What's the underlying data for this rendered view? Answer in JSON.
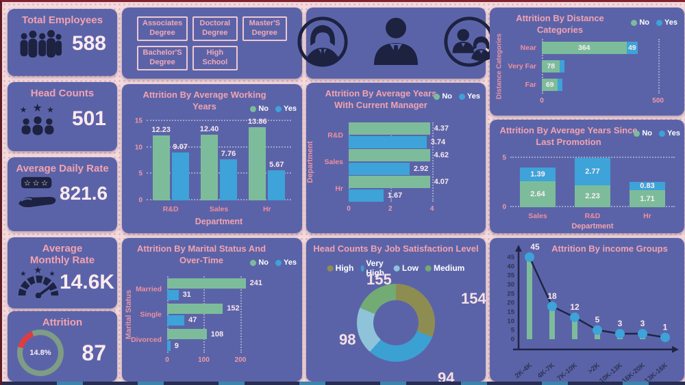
{
  "colors": {
    "background": "#f4d9dd",
    "card": "#5b63a8",
    "title_pink": "#f2a3b0",
    "value_light": "#fdeaee",
    "axis_salmon": "#ef9ba7",
    "no_green": "#7cbc9b",
    "yes_blue": "#3da3d8",
    "icon_dark": "#1c2240",
    "line_dark": "#1e2546",
    "gauge_red": "#e03c40",
    "gauge_ring": "#7f9c85",
    "donut_high": "#8e8d51",
    "donut_very_high": "#3ba0d2",
    "donut_low": "#8ec3da",
    "donut_medium": "#72ab74"
  },
  "legend": {
    "no": "No",
    "yes": "Yes"
  },
  "kpis": [
    {
      "title": "Total Employees",
      "value": "588"
    },
    {
      "title": "Head Counts",
      "value": "501"
    },
    {
      "title": "Average Daily Rate",
      "value": "821.6"
    },
    {
      "title": "Average Monthly Rate",
      "value": "14.6K"
    },
    {
      "title": "Attrition",
      "value": "87",
      "gauge_label": "14.8%"
    }
  ],
  "education_filters": {
    "buttons": [
      "Associates Degree",
      "Doctoral Degree",
      "Master'S Degree",
      "Bachelor'S Degree",
      "High School"
    ]
  },
  "chart_data": [
    {
      "type": "bar",
      "title": "Attrition By Average Working Years",
      "categories": [
        "R&D",
        "Sales",
        "Hr"
      ],
      "series": [
        {
          "name": "No",
          "values": [
            12.23,
            12.4,
            13.86
          ]
        },
        {
          "name": "Yes",
          "values": [
            9.07,
            7.76,
            5.67
          ]
        }
      ],
      "xlabel": "Department",
      "ylim": [
        0,
        15
      ],
      "yticks": [
        0,
        5,
        10,
        15
      ],
      "grid": true,
      "legend_position": "top-right"
    },
    {
      "type": "bar-horizontal",
      "title": "Attrition By Average Years With Current Manager",
      "categories": [
        "R&D",
        "Sales",
        "Hr"
      ],
      "series": [
        {
          "name": "No",
          "values": [
            4.37,
            4.62,
            4.07
          ]
        },
        {
          "name": "Yes",
          "values": [
            3.74,
            2.92,
            1.67
          ]
        }
      ],
      "ylabel": "Department",
      "xlim": [
        0,
        4.8
      ],
      "xticks": [
        0,
        2,
        4
      ],
      "grid": true,
      "legend_position": "top-right"
    },
    {
      "type": "bar-horizontal",
      "title": "Attrition By Marital Status And Over-Time",
      "categories": [
        "Married",
        "Single",
        "Divorced"
      ],
      "series": [
        {
          "name": "No",
          "values": [
            241,
            152,
            108
          ]
        },
        {
          "name": "Yes",
          "values": [
            31,
            47,
            9
          ]
        }
      ],
      "ylabel": "Marital Status",
      "xlim": [
        0,
        260
      ],
      "xticks": [
        0,
        100,
        200
      ],
      "grid": true,
      "legend_position": "top-right"
    },
    {
      "type": "bar-horizontal-stacked",
      "title": "Attrition By Distance Categories",
      "categories": [
        "Near",
        "Very Far",
        "Far"
      ],
      "series": [
        {
          "name": "No",
          "values": [
            364,
            78,
            69
          ]
        },
        {
          "name": "Yes",
          "values": [
            49,
            null,
            null
          ]
        }
      ],
      "ylabel": "Distance Categories",
      "xlim": [
        0,
        560
      ],
      "xticks": [
        0,
        500
      ],
      "grid": true,
      "legend_position": "top-right"
    },
    {
      "type": "bar-stacked",
      "title": "Attrition By Average Years Since Last Promotion",
      "categories": [
        "Sales",
        "R&D",
        "Hr"
      ],
      "series": [
        {
          "name": "No",
          "values": [
            2.64,
            2.23,
            1.71
          ]
        },
        {
          "name": "Yes",
          "values": [
            1.39,
            2.77,
            0.83
          ]
        }
      ],
      "xlabel": "Department",
      "ylim": [
        0,
        5
      ],
      "yticks": [
        0,
        5
      ],
      "grid": true,
      "legend_position": "top-right"
    },
    {
      "type": "line",
      "title": "Attrition By income Groups",
      "categories": [
        "2K-4K",
        "4K-7K",
        "7K-10K",
        ">2K",
        "10K-13K",
        "16K-20K",
        "13K-16K"
      ],
      "values": [
        45,
        18,
        12,
        5,
        3,
        3,
        1
      ],
      "yticks": [
        0,
        5,
        10,
        15,
        20,
        25,
        30,
        35,
        40,
        45
      ],
      "ylim": [
        0,
        45
      ],
      "drop_bars": true,
      "legend_position": "none"
    },
    {
      "type": "donut",
      "title": "Head Counts By Job Satisfaction Level",
      "segments": [
        {
          "label": "High",
          "value": 155,
          "color": "#8e8d51"
        },
        {
          "label": "Very High",
          "value": 154,
          "color": "#3ba0d2"
        },
        {
          "label": "Low",
          "value": 98,
          "color": "#8ec3da"
        },
        {
          "label": "Medium",
          "value": 94,
          "color": "#72ab74"
        }
      ],
      "total": 501,
      "legend_position": "top"
    }
  ]
}
